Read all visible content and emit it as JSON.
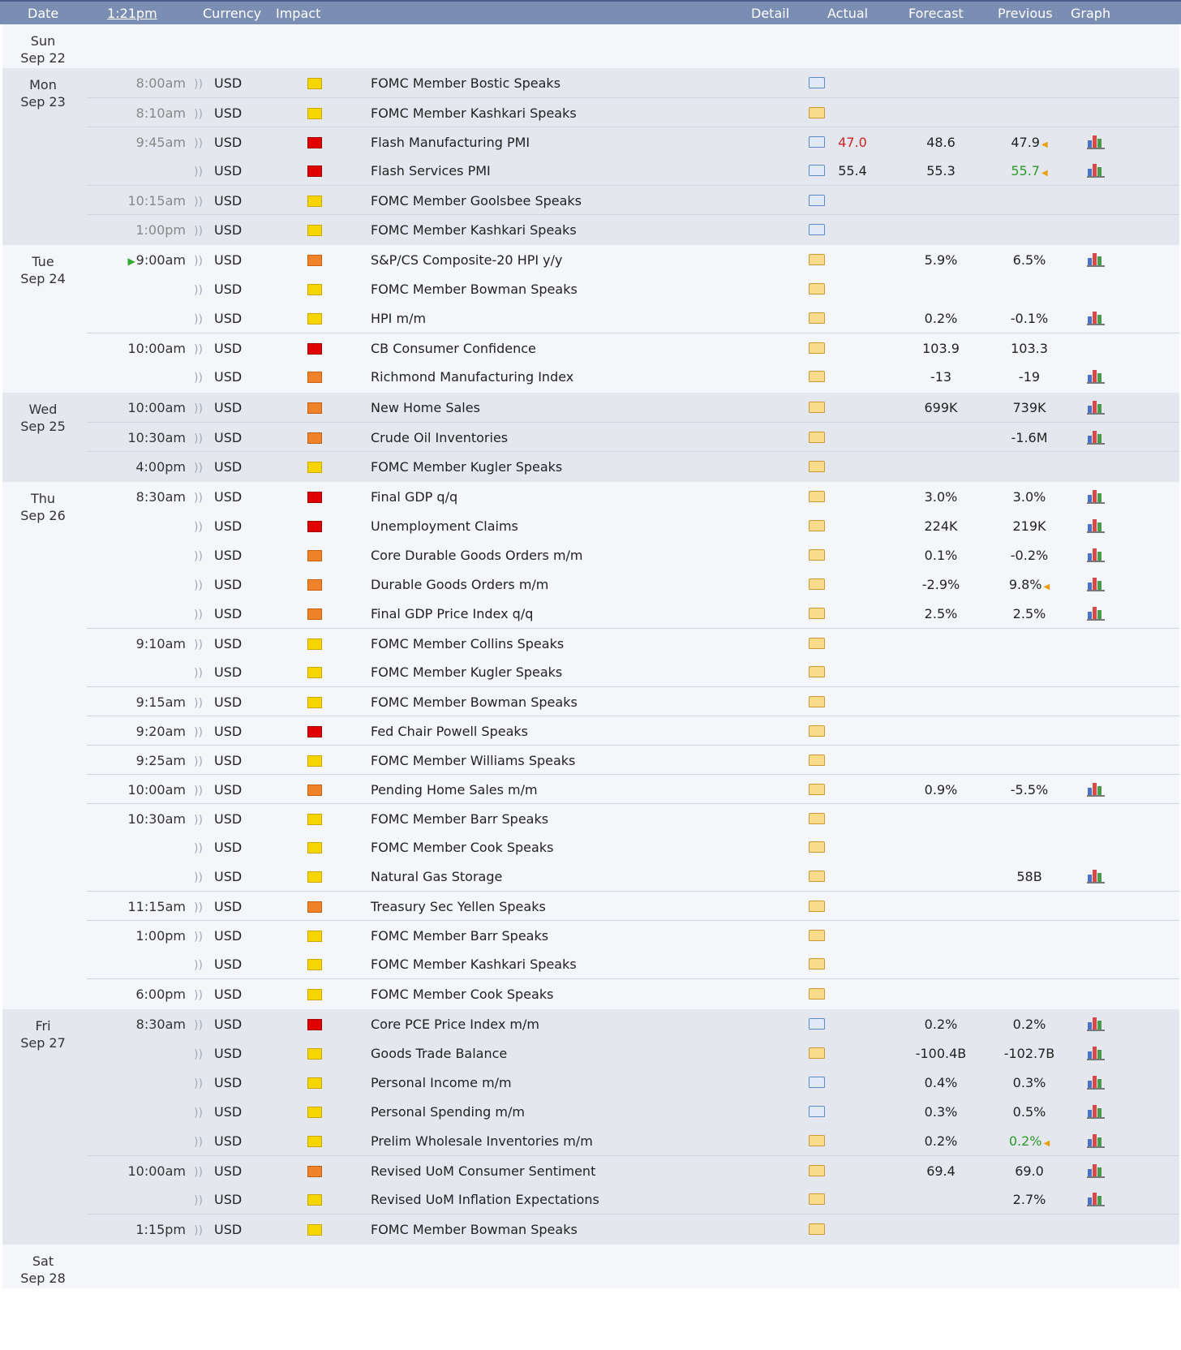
{
  "header": {
    "date": "Date",
    "time": "1:21pm",
    "currency": "Currency",
    "impact": "Impact",
    "detail": "Detail",
    "actual": "Actual",
    "forecast": "Forecast",
    "previous": "Previous",
    "graph": "Graph"
  },
  "colors": {
    "header_bg": "#7a8db3",
    "row_shaded": "#e4e7ee",
    "row_plain": "#f4f6fa",
    "impact_high": "#e00000",
    "impact_medium": "#f0822a",
    "impact_low": "#f6d500",
    "actual_worse": "#cc2222",
    "previous_revised_better": "#2a9a2a"
  },
  "days": [
    {
      "dow": "Sun",
      "date": "Sep 22",
      "shaded": false,
      "events": []
    },
    {
      "dow": "Mon",
      "date": "Sep 23",
      "shaded": true,
      "events": [
        {
          "time": "8:00am",
          "past": true,
          "currency": "USD",
          "impact": "low",
          "event": "FOMC Member Bostic Speaks",
          "detail": "news",
          "actual": "",
          "forecast": "",
          "previous": "",
          "graph": false,
          "newgroup": false
        },
        {
          "time": "8:10am",
          "past": true,
          "currency": "USD",
          "impact": "low",
          "event": "FOMC Member Kashkari Speaks",
          "detail": "star",
          "actual": "",
          "forecast": "",
          "previous": "",
          "graph": false,
          "newgroup": true
        },
        {
          "time": "9:45am",
          "past": true,
          "currency": "USD",
          "impact": "high",
          "event": "Flash Manufacturing PMI",
          "detail": "news",
          "actual": "47.0",
          "actual_class": "red",
          "forecast": "48.6",
          "previous": "47.9",
          "prev_revised": true,
          "graph": true,
          "newgroup": true
        },
        {
          "time": "",
          "past": true,
          "currency": "USD",
          "impact": "high",
          "event": "Flash Services PMI",
          "detail": "news",
          "actual": "55.4",
          "forecast": "55.3",
          "previous": "55.7",
          "prev_class": "green",
          "prev_revised": true,
          "graph": true,
          "newgroup": false
        },
        {
          "time": "10:15am",
          "past": true,
          "currency": "USD",
          "impact": "low",
          "event": "FOMC Member Goolsbee Speaks",
          "detail": "news",
          "actual": "",
          "forecast": "",
          "previous": "",
          "graph": false,
          "newgroup": true
        },
        {
          "time": "1:00pm",
          "past": true,
          "currency": "USD",
          "impact": "low",
          "event": "FOMC Member Kashkari Speaks",
          "detail": "news",
          "actual": "",
          "forecast": "",
          "previous": "",
          "graph": false,
          "newgroup": true
        }
      ]
    },
    {
      "dow": "Tue",
      "date": "Sep 24",
      "shaded": false,
      "events": [
        {
          "time": "9:00am",
          "next": true,
          "currency": "USD",
          "impact": "medium",
          "event": "S&P/CS Composite-20 HPI y/y",
          "detail": "plain",
          "actual": "",
          "forecast": "5.9%",
          "previous": "6.5%",
          "graph": true,
          "newgroup": false
        },
        {
          "time": "",
          "currency": "USD",
          "impact": "low",
          "event": "FOMC Member Bowman Speaks",
          "detail": "plain",
          "actual": "",
          "forecast": "",
          "previous": "",
          "graph": false,
          "newgroup": false
        },
        {
          "time": "",
          "currency": "USD",
          "impact": "low",
          "event": "HPI m/m",
          "detail": "plain",
          "actual": "",
          "forecast": "0.2%",
          "previous": "-0.1%",
          "graph": true,
          "newgroup": false
        },
        {
          "time": "10:00am",
          "currency": "USD",
          "impact": "high",
          "event": "CB Consumer Confidence",
          "detail": "plain",
          "actual": "",
          "forecast": "103.9",
          "previous": "103.3",
          "graph": false,
          "newgroup": true
        },
        {
          "time": "",
          "currency": "USD",
          "impact": "medium",
          "event": "Richmond Manufacturing Index",
          "detail": "plain",
          "actual": "",
          "forecast": "-13",
          "previous": "-19",
          "graph": true,
          "newgroup": false
        }
      ]
    },
    {
      "dow": "Wed",
      "date": "Sep 25",
      "shaded": true,
      "events": [
        {
          "time": "10:00am",
          "currency": "USD",
          "impact": "medium",
          "event": "New Home Sales",
          "detail": "plain",
          "actual": "",
          "forecast": "699K",
          "previous": "739K",
          "graph": true,
          "newgroup": false
        },
        {
          "time": "10:30am",
          "currency": "USD",
          "impact": "medium",
          "event": "Crude Oil Inventories",
          "detail": "plain",
          "actual": "",
          "forecast": "",
          "previous": "-1.6M",
          "graph": true,
          "newgroup": true
        },
        {
          "time": "4:00pm",
          "currency": "USD",
          "impact": "low",
          "event": "FOMC Member Kugler Speaks",
          "detail": "plain",
          "actual": "",
          "forecast": "",
          "previous": "",
          "graph": false,
          "newgroup": true
        }
      ]
    },
    {
      "dow": "Thu",
      "date": "Sep 26",
      "shaded": false,
      "events": [
        {
          "time": "8:30am",
          "currency": "USD",
          "impact": "high",
          "event": "Final GDP q/q",
          "detail": "plain",
          "actual": "",
          "forecast": "3.0%",
          "previous": "3.0%",
          "graph": true,
          "newgroup": false
        },
        {
          "time": "",
          "currency": "USD",
          "impact": "high",
          "event": "Unemployment Claims",
          "detail": "plain",
          "actual": "",
          "forecast": "224K",
          "previous": "219K",
          "graph": true,
          "newgroup": false
        },
        {
          "time": "",
          "currency": "USD",
          "impact": "medium",
          "event": "Core Durable Goods Orders m/m",
          "detail": "plain",
          "actual": "",
          "forecast": "0.1%",
          "previous": "-0.2%",
          "graph": true,
          "newgroup": false
        },
        {
          "time": "",
          "currency": "USD",
          "impact": "medium",
          "event": "Durable Goods Orders m/m",
          "detail": "plain",
          "actual": "",
          "forecast": "-2.9%",
          "previous": "9.8%",
          "prev_revised": true,
          "graph": true,
          "newgroup": false
        },
        {
          "time": "",
          "currency": "USD",
          "impact": "medium",
          "event": "Final GDP Price Index q/q",
          "detail": "plain",
          "actual": "",
          "forecast": "2.5%",
          "previous": "2.5%",
          "graph": true,
          "newgroup": false
        },
        {
          "time": "9:10am",
          "currency": "USD",
          "impact": "low",
          "event": "FOMC Member Collins Speaks",
          "detail": "plain",
          "actual": "",
          "forecast": "",
          "previous": "",
          "graph": false,
          "newgroup": true
        },
        {
          "time": "",
          "currency": "USD",
          "impact": "low",
          "event": "FOMC Member Kugler Speaks",
          "detail": "plain",
          "actual": "",
          "forecast": "",
          "previous": "",
          "graph": false,
          "newgroup": false
        },
        {
          "time": "9:15am",
          "currency": "USD",
          "impact": "low",
          "event": "FOMC Member Bowman Speaks",
          "detail": "plain",
          "actual": "",
          "forecast": "",
          "previous": "",
          "graph": false,
          "newgroup": true
        },
        {
          "time": "9:20am",
          "currency": "USD",
          "impact": "high",
          "event": "Fed Chair Powell Speaks",
          "detail": "plain",
          "actual": "",
          "forecast": "",
          "previous": "",
          "graph": false,
          "newgroup": true
        },
        {
          "time": "9:25am",
          "currency": "USD",
          "impact": "low",
          "event": "FOMC Member Williams Speaks",
          "detail": "plain",
          "actual": "",
          "forecast": "",
          "previous": "",
          "graph": false,
          "newgroup": true
        },
        {
          "time": "10:00am",
          "currency": "USD",
          "impact": "medium",
          "event": "Pending Home Sales m/m",
          "detail": "plain",
          "actual": "",
          "forecast": "0.9%",
          "previous": "-5.5%",
          "graph": true,
          "newgroup": true
        },
        {
          "time": "10:30am",
          "currency": "USD",
          "impact": "low",
          "event": "FOMC Member Barr Speaks",
          "detail": "plain",
          "actual": "",
          "forecast": "",
          "previous": "",
          "graph": false,
          "newgroup": true
        },
        {
          "time": "",
          "currency": "USD",
          "impact": "low",
          "event": "FOMC Member Cook Speaks",
          "detail": "plain",
          "actual": "",
          "forecast": "",
          "previous": "",
          "graph": false,
          "newgroup": false
        },
        {
          "time": "",
          "currency": "USD",
          "impact": "low",
          "event": "Natural Gas Storage",
          "detail": "plain",
          "actual": "",
          "forecast": "",
          "previous": "58B",
          "graph": true,
          "newgroup": false
        },
        {
          "time": "11:15am",
          "currency": "USD",
          "impact": "medium",
          "event": "Treasury Sec Yellen Speaks",
          "detail": "plain",
          "actual": "",
          "forecast": "",
          "previous": "",
          "graph": false,
          "newgroup": true
        },
        {
          "time": "1:00pm",
          "currency": "USD",
          "impact": "low",
          "event": "FOMC Member Barr Speaks",
          "detail": "plain",
          "actual": "",
          "forecast": "",
          "previous": "",
          "graph": false,
          "newgroup": true
        },
        {
          "time": "",
          "currency": "USD",
          "impact": "low",
          "event": "FOMC Member Kashkari Speaks",
          "detail": "plain",
          "actual": "",
          "forecast": "",
          "previous": "",
          "graph": false,
          "newgroup": false
        },
        {
          "time": "6:00pm",
          "currency": "USD",
          "impact": "low",
          "event": "FOMC Member Cook Speaks",
          "detail": "plain",
          "actual": "",
          "forecast": "",
          "previous": "",
          "graph": false,
          "newgroup": true
        }
      ]
    },
    {
      "dow": "Fri",
      "date": "Sep 27",
      "shaded": true,
      "events": [
        {
          "time": "8:30am",
          "currency": "USD",
          "impact": "high",
          "event": "Core PCE Price Index m/m",
          "detail": "news",
          "actual": "",
          "forecast": "0.2%",
          "previous": "0.2%",
          "graph": true,
          "newgroup": false
        },
        {
          "time": "",
          "currency": "USD",
          "impact": "low",
          "event": "Goods Trade Balance",
          "detail": "plain",
          "actual": "",
          "forecast": "-100.4B",
          "previous": "-102.7B",
          "graph": true,
          "newgroup": false
        },
        {
          "time": "",
          "currency": "USD",
          "impact": "low",
          "event": "Personal Income m/m",
          "detail": "news",
          "actual": "",
          "forecast": "0.4%",
          "previous": "0.3%",
          "graph": true,
          "newgroup": false
        },
        {
          "time": "",
          "currency": "USD",
          "impact": "low",
          "event": "Personal Spending m/m",
          "detail": "news",
          "actual": "",
          "forecast": "0.3%",
          "previous": "0.5%",
          "graph": true,
          "newgroup": false
        },
        {
          "time": "",
          "currency": "USD",
          "impact": "low",
          "event": "Prelim Wholesale Inventories m/m",
          "detail": "plain",
          "actual": "",
          "forecast": "0.2%",
          "previous": "0.2%",
          "prev_class": "green",
          "prev_revised": true,
          "graph": true,
          "newgroup": false
        },
        {
          "time": "10:00am",
          "currency": "USD",
          "impact": "medium",
          "event": "Revised UoM Consumer Sentiment",
          "detail": "plain",
          "actual": "",
          "forecast": "69.4",
          "previous": "69.0",
          "graph": true,
          "newgroup": true
        },
        {
          "time": "",
          "currency": "USD",
          "impact": "low",
          "event": "Revised UoM Inflation Expectations",
          "detail": "plain",
          "actual": "",
          "forecast": "",
          "previous": "2.7%",
          "graph": true,
          "newgroup": false
        },
        {
          "time": "1:15pm",
          "currency": "USD",
          "impact": "low",
          "event": "FOMC Member Bowman Speaks",
          "detail": "plain",
          "actual": "",
          "forecast": "",
          "previous": "",
          "graph": false,
          "newgroup": true
        }
      ]
    },
    {
      "dow": "Sat",
      "date": "Sep 28",
      "shaded": false,
      "events": []
    }
  ]
}
